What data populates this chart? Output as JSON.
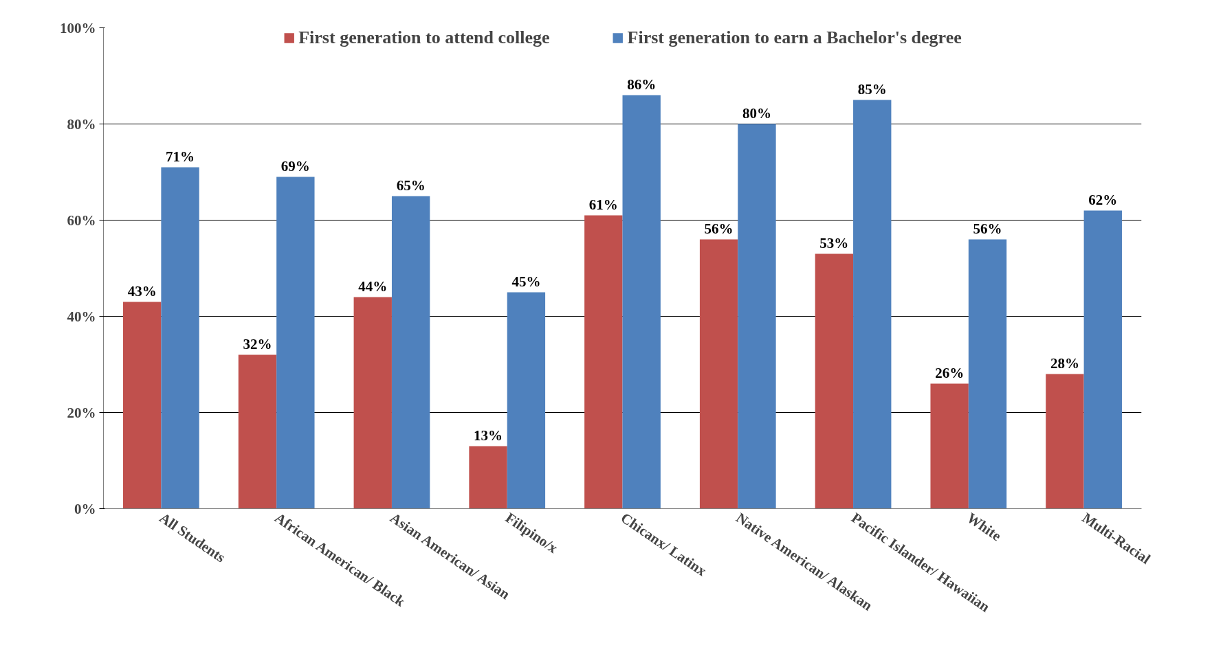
{
  "chart_data": {
    "type": "bar",
    "categories": [
      "All Students",
      "African American/ Black",
      "Asian American/ Asian",
      "Filipino/x",
      "Chicanx/ Latinx",
      "Native American/ Alaskan",
      "Pacific Islander/ Hawaiian",
      "White",
      "Multi-Racial"
    ],
    "series": [
      {
        "name": "First generation to attend college",
        "color": "#c0504d",
        "values": [
          43,
          32,
          44,
          13,
          61,
          56,
          53,
          26,
          28
        ],
        "value_labels": [
          "43%",
          "32%",
          "44%",
          "13%",
          "61%",
          "56%",
          "53%",
          "26%",
          "28%"
        ]
      },
      {
        "name": "First generation to earn a Bachelor's degree",
        "color": "#4f81bd",
        "values": [
          71,
          69,
          65,
          45,
          86,
          80,
          85,
          56,
          62
        ],
        "value_labels": [
          "71%",
          "69%",
          "65%",
          "45%",
          "86%",
          "80%",
          "85%",
          "56%",
          "62%"
        ]
      }
    ],
    "ylim": [
      0,
      100
    ],
    "yticks": [
      {
        "value": 0,
        "label": "0%"
      },
      {
        "value": 20,
        "label": "20%"
      },
      {
        "value": 40,
        "label": "40%"
      },
      {
        "value": 60,
        "label": "60%"
      },
      {
        "value": 80,
        "label": "80%"
      },
      {
        "value": 100,
        "label": "100%"
      }
    ],
    "grid": "y",
    "legend": "top"
  }
}
